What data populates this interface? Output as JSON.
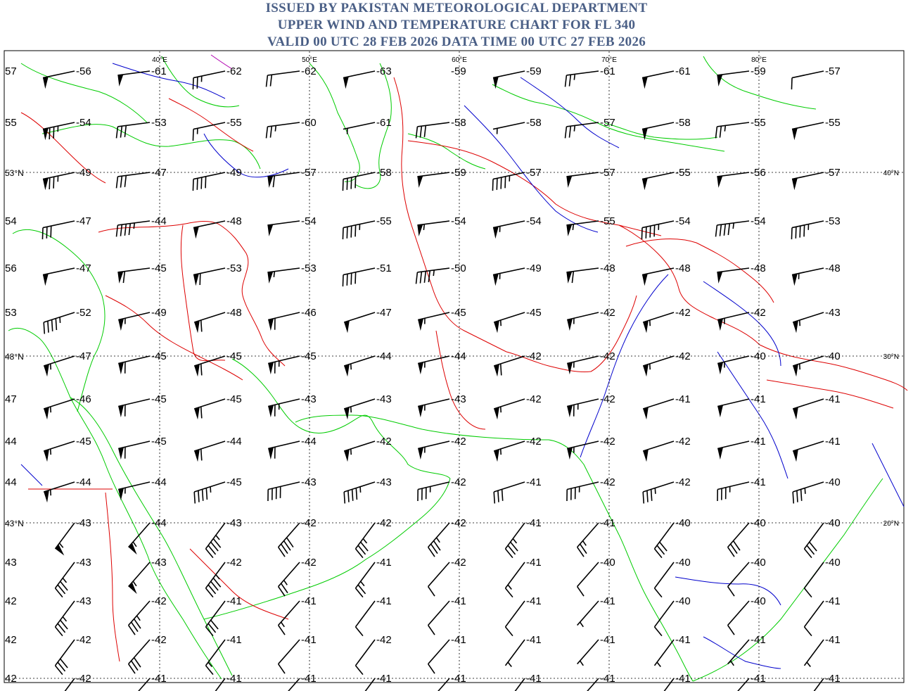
{
  "header": {
    "line1": "ISSUED BY PAKISTAN METEOROLOGICAL DEPARTMENT",
    "line2": "UPPER WIND AND TEMPERATURE CHART FOR FL 340",
    "line3": "VALID 00 UTC 28 FEB 2026 DATA TIME 00 UTC 27 FEB 2026"
  },
  "colors": {
    "header": "#4a5f86",
    "coast": "#00cc00",
    "border": "#dd0000",
    "river": "#0000cc"
  },
  "lon_labels": [
    "40°E",
    "50°E",
    "60°E",
    "70°E",
    "80°E"
  ],
  "lat_labels": [
    "40°N",
    "30°N",
    "20°N"
  ],
  "left_labels": [
    "57",
    "55",
    "53°N",
    "54",
    "56",
    "53",
    "48°N",
    "47",
    "44",
    "44",
    "43°N",
    "43",
    "42",
    "42",
    "42"
  ],
  "temperatures": [
    [
      "-56",
      "-61",
      "-62",
      "-62",
      "-63",
      "-59",
      "-59",
      "-61",
      "-61",
      "-59",
      "-57"
    ],
    [
      "-54",
      "-53",
      "-55",
      "-60",
      "-61",
      "-58",
      "-58",
      "-57",
      "-58",
      "-55",
      "-55"
    ],
    [
      "-49",
      "-47",
      "-49",
      "-57",
      "-58",
      "-59",
      "-57",
      "-57",
      "-55",
      "-56",
      "-57"
    ],
    [
      "-47",
      "-44",
      "-48",
      "-54",
      "-55",
      "-54",
      "-54",
      "-55",
      "-54",
      "-54",
      "-53"
    ],
    [
      "-47",
      "-45",
      "-53",
      "-53",
      "-51",
      "-50",
      "-49",
      "-48",
      "-48",
      "-48",
      "-48"
    ],
    [
      "-52",
      "-49",
      "-48",
      "-46",
      "-47",
      "-45",
      "-45",
      "-42",
      "-42",
      "-42",
      "-43"
    ],
    [
      "-47",
      "-45",
      "-45",
      "-45",
      "-44",
      "-44",
      "-42",
      "-42",
      "-42",
      "-40",
      "-40"
    ],
    [
      "-46",
      "-45",
      "-45",
      "-43",
      "-43",
      "-43",
      "-42",
      "-42",
      "-41",
      "-41",
      "-41"
    ],
    [
      "-45",
      "-45",
      "-44",
      "-44",
      "-42",
      "-42",
      "-42",
      "-42",
      "-42",
      "-41",
      "-41"
    ],
    [
      "-44",
      "-44",
      "-45",
      "-43",
      "-43",
      "-42",
      "-41",
      "-42",
      "-42",
      "-41",
      "-40"
    ],
    [
      "-43",
      "-44",
      "-43",
      "-42",
      "-42",
      "-42",
      "-41",
      "-41",
      "-40",
      "-40",
      "-40"
    ],
    [
      "-43",
      "-43",
      "-42",
      "-42",
      "-41",
      "-42",
      "-41",
      "-40",
      "-40",
      "-40",
      "-40"
    ],
    [
      "-43",
      "-42",
      "-41",
      "-41",
      "-41",
      "-41",
      "-41",
      "-41",
      "-40",
      "-40",
      "-41"
    ],
    [
      "-42",
      "-42",
      "-41",
      "-41",
      "-42",
      "-41",
      "-41",
      "-41",
      "-41",
      "-41",
      "-41"
    ],
    [
      "-42",
      "-41",
      "-41",
      "-41",
      "-41",
      "-41",
      "-41",
      "-41",
      "-41",
      "-41",
      "-41"
    ]
  ],
  "wind_speeds_kt": [
    [
      50,
      50,
      25,
      20,
      50,
      0,
      50,
      25,
      50,
      50,
      10
    ],
    [
      75,
      30,
      15,
      25,
      5,
      30,
      5,
      25,
      50,
      25,
      50
    ],
    [
      75,
      30,
      40,
      60,
      40,
      50,
      45,
      50,
      50,
      50,
      50
    ],
    [
      30,
      45,
      50,
      50,
      45,
      55,
      55,
      55,
      45,
      45,
      45
    ],
    [
      50,
      60,
      60,
      55,
      40,
      45,
      55,
      60,
      50,
      50,
      55
    ],
    [
      45,
      55,
      60,
      60,
      50,
      55,
      55,
      55,
      55,
      55,
      55
    ],
    [
      55,
      60,
      60,
      65,
      55,
      55,
      60,
      55,
      55,
      55,
      55
    ],
    [
      55,
      60,
      60,
      65,
      55,
      55,
      55,
      65,
      50,
      50,
      50
    ],
    [
      55,
      60,
      60,
      60,
      55,
      55,
      55,
      55,
      50,
      50,
      50
    ],
    [
      55,
      55,
      45,
      40,
      45,
      35,
      30,
      35,
      35,
      35,
      35
    ],
    [
      55,
      55,
      45,
      40,
      35,
      35,
      35,
      25,
      30,
      30,
      30
    ],
    [
      35,
      55,
      45,
      25,
      25,
      10,
      15,
      10,
      10,
      10,
      10
    ],
    [
      35,
      35,
      30,
      15,
      10,
      10,
      10,
      5,
      10,
      10,
      10
    ],
    [
      30,
      30,
      15,
      10,
      10,
      10,
      5,
      5,
      5,
      5,
      5
    ],
    [
      20,
      15,
      15,
      10,
      5,
      5,
      10,
      5,
      5,
      5,
      5
    ]
  ]
}
